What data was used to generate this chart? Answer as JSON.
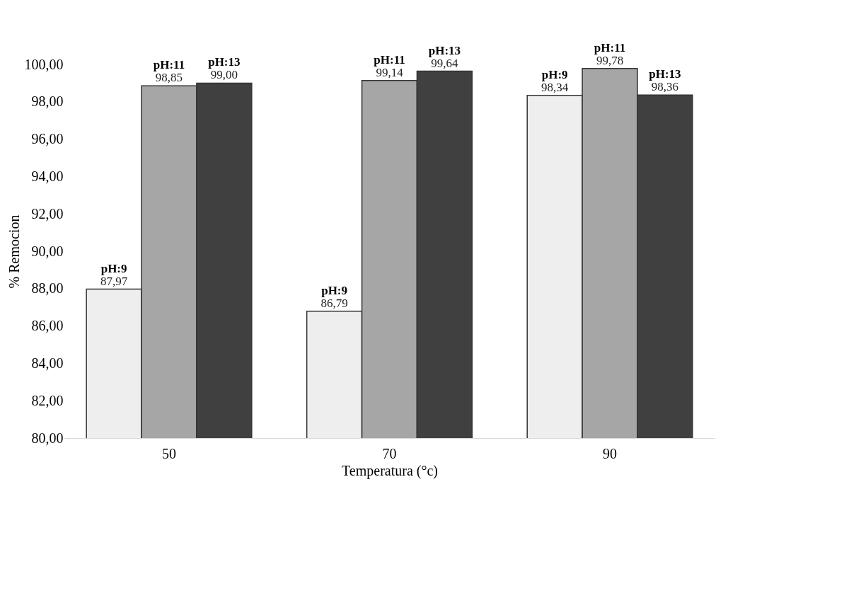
{
  "chart_data": {
    "type": "bar",
    "xlabel": "Temperatura (°c)",
    "ylabel": "% Remocion",
    "categories": [
      "50",
      "70",
      "90"
    ],
    "series": [
      {
        "name": "pH:9",
        "color": "#eeeeee",
        "values": [
          87.97,
          86.79,
          98.34
        ],
        "value_labels": [
          "87,97",
          "86,79",
          "98,34"
        ]
      },
      {
        "name": "pH:11",
        "color": "#a6a6a6",
        "values": [
          98.85,
          99.14,
          99.78
        ],
        "value_labels": [
          "98,85",
          "99,14",
          "99,78"
        ]
      },
      {
        "name": "pH:13",
        "color": "#404040",
        "values": [
          99.0,
          99.64,
          98.36
        ],
        "value_labels": [
          "99,00",
          "99,64",
          "98,36"
        ]
      }
    ],
    "ylim": [
      80,
      100
    ],
    "yticks": [
      {
        "value": 80,
        "label": "80,00"
      },
      {
        "value": 82,
        "label": "82,00"
      },
      {
        "value": 84,
        "label": "84,00"
      },
      {
        "value": 86,
        "label": "86,00"
      },
      {
        "value": 88,
        "label": "88,00"
      },
      {
        "value": 90,
        "label": "90,00"
      },
      {
        "value": 92,
        "label": "92,00"
      },
      {
        "value": 94,
        "label": "94,00"
      },
      {
        "value": 96,
        "label": "96,00"
      },
      {
        "value": 98,
        "label": "98,00"
      },
      {
        "value": 100,
        "label": "100,00"
      }
    ],
    "grid": false,
    "legend": false
  }
}
